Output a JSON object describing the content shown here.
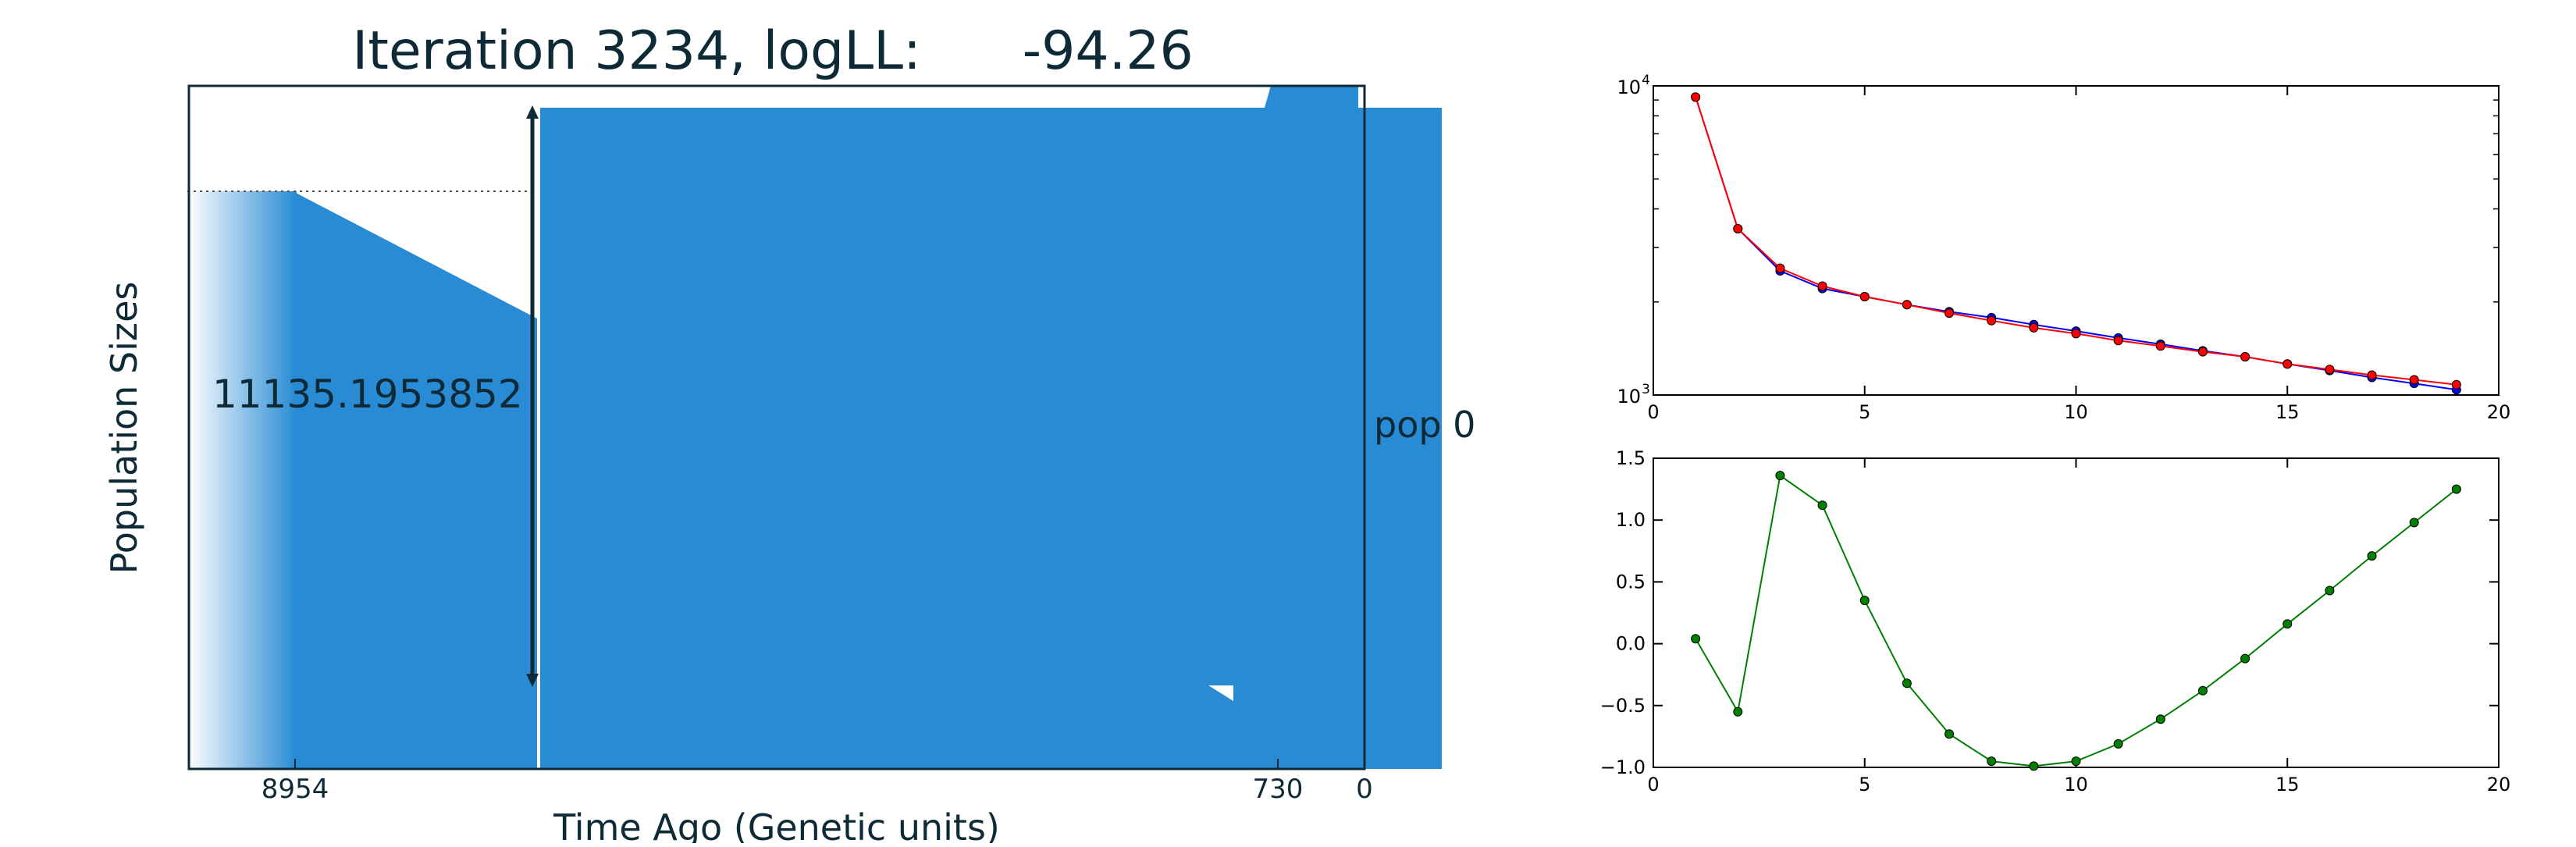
{
  "left_panel": {
    "title": "Iteration 3234, logLL:      -94.26",
    "xlabel": "Time Ago (Genetic units)",
    "ylabel": "Population Sizes",
    "size_label": "11135.1953852",
    "pop_label": "pop 0",
    "x_ticks": [
      "8954",
      "730",
      "0"
    ],
    "fill_color": "#288bd4"
  },
  "chart_data": [
    {
      "type": "line",
      "yscale": "log",
      "xlim": [
        0,
        20
      ],
      "ylim": [
        1000,
        10000
      ],
      "x_ticks": [
        "0",
        "5",
        "10",
        "15",
        "20"
      ],
      "y_tick_base": "10",
      "y_tick_exps": [
        "4",
        "3"
      ],
      "x": [
        1,
        2,
        3,
        4,
        5,
        6,
        7,
        8,
        9,
        10,
        11,
        12,
        13,
        14,
        15,
        16,
        17,
        18,
        19
      ],
      "series": [
        {
          "color": "#0000ff",
          "values": [
            9200,
            3450,
            2520,
            2210,
            2080,
            1960,
            1860,
            1780,
            1690,
            1610,
            1530,
            1460,
            1390,
            1330,
            1260,
            1200,
            1140,
            1090,
            1040
          ]
        },
        {
          "color": "#ff0000",
          "values": [
            9200,
            3450,
            2570,
            2250,
            2080,
            1960,
            1840,
            1740,
            1650,
            1580,
            1500,
            1440,
            1380,
            1330,
            1260,
            1210,
            1160,
            1120,
            1080
          ]
        }
      ]
    },
    {
      "type": "line",
      "xlim": [
        0,
        20
      ],
      "ylim": [
        -1.0,
        1.5
      ],
      "x_ticks": [
        "0",
        "5",
        "10",
        "15",
        "20"
      ],
      "y_ticks": [
        "1.5",
        "1.0",
        "0.5",
        "0.0",
        "−0.5",
        "−1.0"
      ],
      "x": [
        1,
        2,
        3,
        4,
        5,
        6,
        7,
        8,
        9,
        10,
        11,
        12,
        13,
        14,
        15,
        16,
        17,
        18,
        19
      ],
      "series": [
        {
          "color": "#008000",
          "values": [
            0.04,
            -0.55,
            1.36,
            1.12,
            0.35,
            -0.32,
            -0.73,
            -0.95,
            -0.99,
            -0.95,
            -0.81,
            -0.61,
            -0.38,
            -0.12,
            0.16,
            0.43,
            0.71,
            0.98,
            1.25
          ]
        }
      ]
    }
  ]
}
